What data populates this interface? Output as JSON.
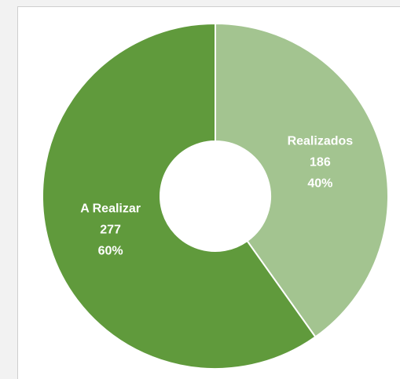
{
  "chart_data": {
    "type": "donut",
    "categories": [
      "Realizados",
      "A Realizar"
    ],
    "values": [
      186,
      277
    ],
    "percent_labels": [
      "40%",
      "60%"
    ],
    "colors": [
      "#a3c490",
      "#609a3c"
    ]
  }
}
